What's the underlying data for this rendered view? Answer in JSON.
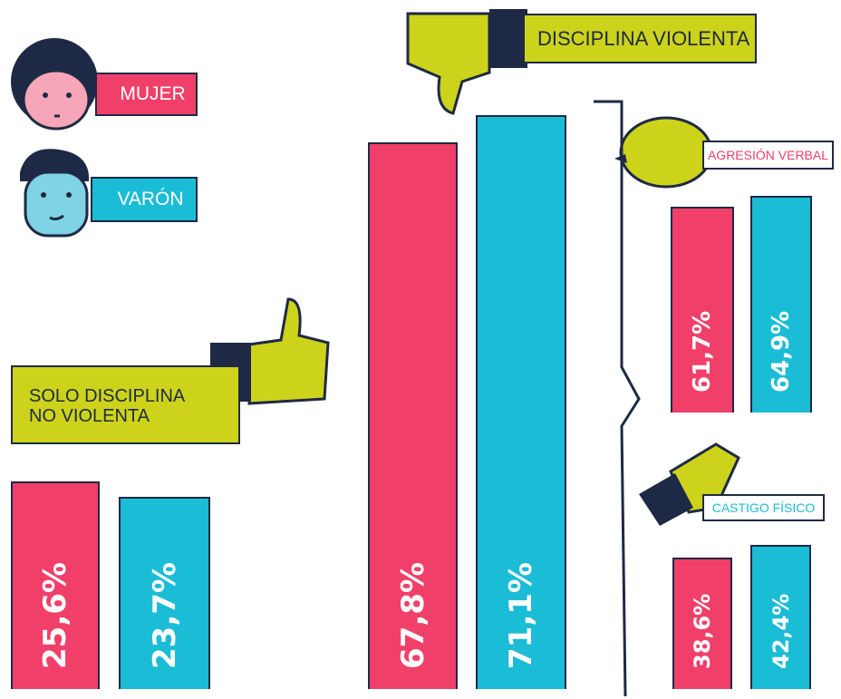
{
  "chart_data": {
    "type": "bar",
    "categories": [
      "SOLO DISCIPLINA NO VIOLENTA",
      "DISCIPLINA VIOLENTA",
      "AGRESIÓN VERBAL",
      "CASTIGO FÍSICO"
    ],
    "series": [
      {
        "name": "MUJER",
        "color": "#f0406a",
        "values": [
          25.6,
          67.8,
          61.7,
          38.6
        ],
        "value_labels": [
          "25,6%",
          "67,8%",
          "61,7%",
          "38,6%"
        ]
      },
      {
        "name": "VARÓN",
        "color": "#1bbcd6",
        "values": [
          23.7,
          71.1,
          64.9,
          42.4
        ],
        "value_labels": [
          "23,7%",
          "71,1%",
          "64,9%",
          "42,4%"
        ]
      }
    ]
  }
}
